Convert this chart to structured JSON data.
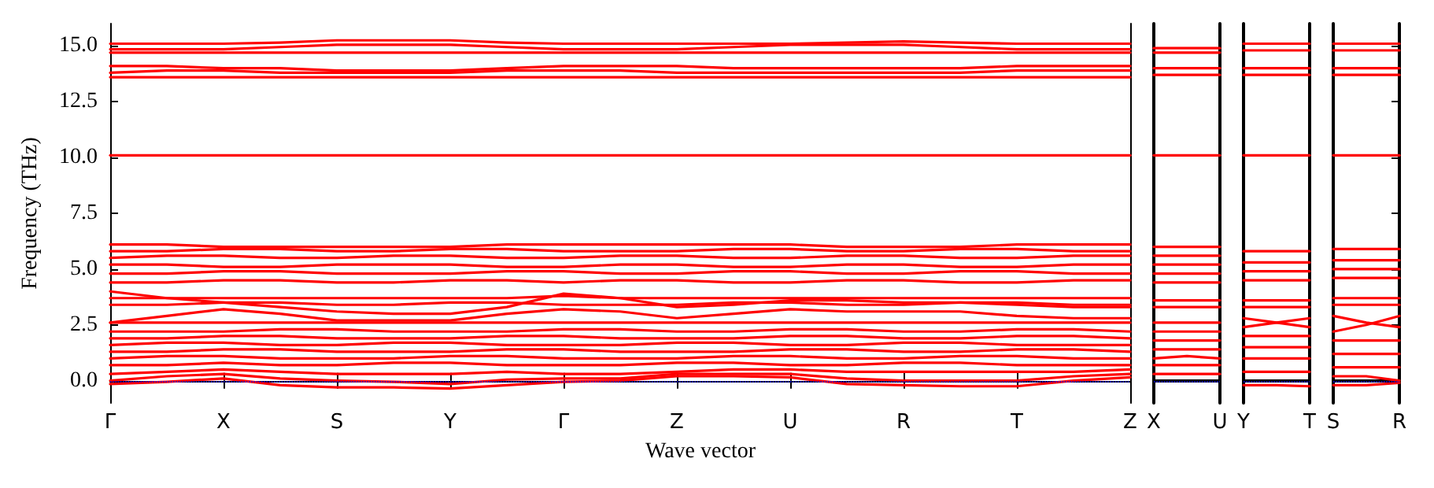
{
  "chart_data": [
    {
      "type": "line",
      "ylabel": "Frequency (THz)",
      "xlabel": "Wave vector",
      "line_style": "solid",
      "marker": "none",
      "categories": [
        "Γ",
        null,
        "X",
        null,
        "S",
        null,
        "Y",
        null,
        "Γ",
        null,
        "Z",
        null,
        "U",
        null,
        "R",
        null,
        "T",
        null,
        "Z"
      ],
      "ylim": [
        -1,
        16
      ],
      "yticks": [
        {
          "value": 0,
          "label": "0.0"
        },
        {
          "value": 2.5,
          "label": "2.5"
        },
        {
          "value": 5,
          "label": "5.0"
        },
        {
          "value": 7.5,
          "label": "7.5"
        },
        {
          "value": 10,
          "label": "10.0"
        },
        {
          "value": 12.5,
          "label": "12.5"
        },
        {
          "value": 15,
          "label": "15.0"
        }
      ],
      "ref_lines": [
        {
          "axis": "y",
          "value": 0,
          "color": "#0000ff",
          "line_style": "dotted"
        }
      ],
      "series": [
        {
          "color": "#ff0000",
          "values": [
            -0.15,
            -0.05,
            0.1,
            -0.2,
            -0.3,
            -0.3,
            -0.35,
            -0.2,
            -0.05,
            0.0,
            0.2,
            0.2,
            0.15,
            -0.15,
            -0.2,
            -0.25,
            -0.25,
            0.0,
            0.15
          ]
        },
        {
          "color": "#ff0000",
          "values": [
            0.0,
            0.2,
            0.3,
            0.1,
            0.0,
            -0.05,
            -0.15,
            0.05,
            0.1,
            0.1,
            0.3,
            0.3,
            0.3,
            0.1,
            0.0,
            0.0,
            0.0,
            0.2,
            0.3
          ]
        },
        {
          "color": "#ff0000",
          "values": [
            0.3,
            0.4,
            0.5,
            0.4,
            0.3,
            0.3,
            0.3,
            0.4,
            0.3,
            0.3,
            0.4,
            0.5,
            0.5,
            0.4,
            0.4,
            0.4,
            0.4,
            0.4,
            0.5
          ]
        },
        {
          "color": "#ff0000",
          "values": [
            0.7,
            0.7,
            0.8,
            0.7,
            0.7,
            0.8,
            0.8,
            0.7,
            0.7,
            0.7,
            0.8,
            0.8,
            0.7,
            0.7,
            0.8,
            0.8,
            0.7,
            0.7,
            0.7
          ]
        },
        {
          "color": "#ff0000",
          "values": [
            1.0,
            1.1,
            1.1,
            1.0,
            1.0,
            1.0,
            1.1,
            1.1,
            1.0,
            1.0,
            1.0,
            1.1,
            1.1,
            1.0,
            1.0,
            1.1,
            1.1,
            1.0,
            1.0
          ]
        },
        {
          "color": "#ff0000",
          "values": [
            1.3,
            1.3,
            1.4,
            1.4,
            1.3,
            1.3,
            1.3,
            1.4,
            1.4,
            1.3,
            1.3,
            1.3,
            1.4,
            1.4,
            1.3,
            1.3,
            1.4,
            1.4,
            1.3
          ]
        },
        {
          "color": "#ff0000",
          "values": [
            1.6,
            1.7,
            1.7,
            1.6,
            1.6,
            1.7,
            1.7,
            1.6,
            1.6,
            1.6,
            1.7,
            1.7,
            1.6,
            1.6,
            1.7,
            1.7,
            1.6,
            1.6,
            1.6
          ]
        },
        {
          "color": "#ff0000",
          "values": [
            1.9,
            1.9,
            2.0,
            2.0,
            1.9,
            1.9,
            1.9,
            2.0,
            2.0,
            1.9,
            1.9,
            1.9,
            2.0,
            2.0,
            1.9,
            1.9,
            2.0,
            2.0,
            1.9
          ]
        },
        {
          "color": "#ff0000",
          "values": [
            2.2,
            2.2,
            2.2,
            2.3,
            2.3,
            2.2,
            2.2,
            2.2,
            2.3,
            2.3,
            2.2,
            2.2,
            2.3,
            2.3,
            2.2,
            2.2,
            2.3,
            2.3,
            2.2
          ]
        },
        {
          "color": "#ff0000",
          "values": [
            2.6,
            2.9,
            3.2,
            3.0,
            2.7,
            2.7,
            2.7,
            3.0,
            3.2,
            3.1,
            2.8,
            3.0,
            3.2,
            3.1,
            3.1,
            3.1,
            2.9,
            2.8,
            2.8
          ]
        },
        {
          "color": "#ff0000",
          "values": [
            2.6,
            2.6,
            2.6,
            2.6,
            2.6,
            2.6,
            2.6,
            2.6,
            2.6,
            2.6,
            2.6,
            2.6,
            2.6,
            2.6,
            2.6,
            2.6,
            2.6,
            2.6,
            2.6
          ]
        },
        {
          "color": "#ff0000",
          "values": [
            3.4,
            3.4,
            3.5,
            3.5,
            3.4,
            3.4,
            3.5,
            3.5,
            3.4,
            3.4,
            3.4,
            3.5,
            3.5,
            3.4,
            3.4,
            3.5,
            3.5,
            3.4,
            3.4
          ]
        },
        {
          "color": "#ff0000",
          "values": [
            3.7,
            3.7,
            3.7,
            3.7,
            3.7,
            3.7,
            3.7,
            3.7,
            3.8,
            3.7,
            3.7,
            3.7,
            3.7,
            3.7,
            3.7,
            3.7,
            3.7,
            3.7,
            3.7
          ]
        },
        {
          "color": "#ff0000",
          "values": [
            4.0,
            3.7,
            3.5,
            3.3,
            3.1,
            3.0,
            3.0,
            3.3,
            3.9,
            3.7,
            3.3,
            3.4,
            3.6,
            3.6,
            3.5,
            3.5,
            3.4,
            3.3,
            3.3
          ]
        },
        {
          "color": "#ff0000",
          "values": [
            4.4,
            4.4,
            4.5,
            4.5,
            4.4,
            4.4,
            4.5,
            4.5,
            4.4,
            4.5,
            4.5,
            4.4,
            4.4,
            4.5,
            4.5,
            4.4,
            4.4,
            4.5,
            4.5
          ]
        },
        {
          "color": "#ff0000",
          "values": [
            4.8,
            4.8,
            4.9,
            4.9,
            4.8,
            4.8,
            4.8,
            4.9,
            4.9,
            4.8,
            4.8,
            4.9,
            4.9,
            4.8,
            4.8,
            4.9,
            4.9,
            4.8,
            4.8
          ]
        },
        {
          "color": "#ff0000",
          "values": [
            5.2,
            5.2,
            5.1,
            5.1,
            5.2,
            5.2,
            5.2,
            5.1,
            5.1,
            5.2,
            5.2,
            5.1,
            5.1,
            5.2,
            5.2,
            5.1,
            5.1,
            5.2,
            5.2
          ]
        },
        {
          "color": "#ff0000",
          "values": [
            5.5,
            5.6,
            5.6,
            5.5,
            5.5,
            5.6,
            5.6,
            5.5,
            5.5,
            5.6,
            5.6,
            5.5,
            5.5,
            5.6,
            5.6,
            5.5,
            5.5,
            5.6,
            5.6
          ]
        },
        {
          "color": "#ff0000",
          "values": [
            5.8,
            5.8,
            5.9,
            5.9,
            5.8,
            5.8,
            5.9,
            5.9,
            5.8,
            5.8,
            5.8,
            5.9,
            5.9,
            5.8,
            5.8,
            5.9,
            5.9,
            5.8,
            5.8
          ]
        },
        {
          "color": "#ff0000",
          "values": [
            6.1,
            6.1,
            6.0,
            6.0,
            6.0,
            6.0,
            6.0,
            6.1,
            6.1,
            6.1,
            6.1,
            6.1,
            6.1,
            6.0,
            6.0,
            6.0,
            6.1,
            6.1,
            6.1
          ]
        },
        {
          "color": "#ff0000",
          "values": [
            10.1,
            10.1,
            10.1,
            10.1,
            10.1,
            10.1,
            10.1,
            10.1,
            10.1,
            10.1,
            10.1,
            10.1,
            10.1,
            10.1,
            10.1,
            10.1,
            10.1,
            10.1,
            10.1
          ]
        },
        {
          "color": "#ff0000",
          "values": [
            13.6,
            13.6,
            13.6,
            13.6,
            13.6,
            13.6,
            13.6,
            13.6,
            13.6,
            13.6,
            13.6,
            13.6,
            13.6,
            13.6,
            13.6,
            13.6,
            13.6,
            13.6,
            13.6
          ]
        },
        {
          "color": "#ff0000",
          "values": [
            13.8,
            13.9,
            13.9,
            13.8,
            13.8,
            13.8,
            13.8,
            13.9,
            13.9,
            13.9,
            13.8,
            13.8,
            13.8,
            13.8,
            13.8,
            13.8,
            13.9,
            13.9,
            13.9
          ]
        },
        {
          "color": "#ff0000",
          "values": [
            14.1,
            14.1,
            14.0,
            14.0,
            13.9,
            13.9,
            13.9,
            14.0,
            14.1,
            14.1,
            14.1,
            14.0,
            14.0,
            14.0,
            14.0,
            14.0,
            14.1,
            14.1,
            14.1
          ]
        },
        {
          "color": "#ff0000",
          "values": [
            14.7,
            14.7,
            14.7,
            14.7,
            14.7,
            14.7,
            14.7,
            14.7,
            14.7,
            14.7,
            14.7,
            14.7,
            14.7,
            14.7,
            14.7,
            14.7,
            14.7,
            14.7,
            14.7
          ]
        },
        {
          "color": "#ff0000",
          "values": [
            14.85,
            14.85,
            14.85,
            14.95,
            15.05,
            15.05,
            15.05,
            14.95,
            14.85,
            14.85,
            14.85,
            14.95,
            15.05,
            15.05,
            15.05,
            14.95,
            14.85,
            14.85,
            14.85
          ]
        },
        {
          "color": "#ff0000",
          "values": [
            15.1,
            15.1,
            15.1,
            15.15,
            15.25,
            15.25,
            15.25,
            15.15,
            15.1,
            15.1,
            15.1,
            15.1,
            15.1,
            15.15,
            15.2,
            15.15,
            15.1,
            15.1,
            15.1
          ]
        }
      ]
    },
    {
      "type": "line",
      "line_style": "solid",
      "marker": "none",
      "tick_labels": "x",
      "categories": [
        "X",
        null,
        "U"
      ],
      "ylim": [
        -1,
        16
      ],
      "yticks": [
        0,
        2.5,
        5,
        7.5,
        10,
        12.5,
        15
      ],
      "ref_lines": [
        {
          "axis": "y",
          "value": 0,
          "color": "#0000ff",
          "line_style": "dotted"
        }
      ],
      "series": [
        {
          "color": "#ff0000",
          "values": [
            0.3,
            0.3,
            0.3
          ]
        },
        {
          "color": "#ff0000",
          "values": [
            0.7,
            0.7,
            0.7
          ]
        },
        {
          "color": "#ff0000",
          "values": [
            1.0,
            1.1,
            1.0
          ]
        },
        {
          "color": "#ff0000",
          "values": [
            1.4,
            1.4,
            1.4
          ]
        },
        {
          "color": "#ff0000",
          "values": [
            1.8,
            1.8,
            1.8
          ]
        },
        {
          "color": "#ff0000",
          "values": [
            2.2,
            2.2,
            2.2
          ]
        },
        {
          "color": "#ff0000",
          "values": [
            2.6,
            2.6,
            2.6
          ]
        },
        {
          "color": "#ff0000",
          "values": [
            3.3,
            3.3,
            3.3
          ]
        },
        {
          "color": "#ff0000",
          "values": [
            3.6,
            3.6,
            3.6
          ]
        },
        {
          "color": "#ff0000",
          "values": [
            4.4,
            4.4,
            4.4
          ]
        },
        {
          "color": "#ff0000",
          "values": [
            4.8,
            4.8,
            4.8
          ]
        },
        {
          "color": "#ff0000",
          "values": [
            5.2,
            5.2,
            5.2
          ]
        },
        {
          "color": "#ff0000",
          "values": [
            5.6,
            5.6,
            5.6
          ]
        },
        {
          "color": "#ff0000",
          "values": [
            6.0,
            6.0,
            6.0
          ]
        },
        {
          "color": "#ff0000",
          "values": [
            10.1,
            10.1,
            10.1
          ]
        },
        {
          "color": "#ff0000",
          "values": [
            13.7,
            13.7,
            13.7
          ]
        },
        {
          "color": "#ff0000",
          "values": [
            14.0,
            14.0,
            14.0
          ]
        },
        {
          "color": "#ff0000",
          "values": [
            14.7,
            14.7,
            14.7
          ]
        },
        {
          "color": "#ff0000",
          "values": [
            14.9,
            14.9,
            14.9
          ]
        }
      ]
    },
    {
      "type": "line",
      "line_style": "solid",
      "marker": "none",
      "tick_labels": "x",
      "categories": [
        "Y",
        null,
        "T"
      ],
      "ylim": [
        -1,
        16
      ],
      "yticks": [
        0,
        2.5,
        5,
        7.5,
        10,
        12.5,
        15
      ],
      "ref_lines": [
        {
          "axis": "y",
          "value": 0,
          "color": "#0000ff",
          "line_style": "dotted"
        }
      ],
      "series": [
        {
          "color": "#ff0000",
          "values": [
            -0.2,
            -0.2,
            -0.25
          ]
        },
        {
          "color": "#ff0000",
          "values": [
            0.4,
            0.4,
            0.4
          ]
        },
        {
          "color": "#ff0000",
          "values": [
            1.0,
            1.0,
            1.0
          ]
        },
        {
          "color": "#ff0000",
          "values": [
            1.5,
            1.5,
            1.5
          ]
        },
        {
          "color": "#ff0000",
          "values": [
            2.0,
            2.0,
            2.0
          ]
        },
        {
          "color": "#ff0000",
          "values": [
            2.4,
            2.6,
            2.8
          ]
        },
        {
          "color": "#ff0000",
          "values": [
            2.8,
            2.6,
            2.4
          ]
        },
        {
          "color": "#ff0000",
          "values": [
            3.3,
            3.3,
            3.3
          ]
        },
        {
          "color": "#ff0000",
          "values": [
            3.6,
            3.6,
            3.6
          ]
        },
        {
          "color": "#ff0000",
          "values": [
            4.5,
            4.5,
            4.5
          ]
        },
        {
          "color": "#ff0000",
          "values": [
            4.9,
            4.9,
            4.9
          ]
        },
        {
          "color": "#ff0000",
          "values": [
            5.3,
            5.3,
            5.3
          ]
        },
        {
          "color": "#ff0000",
          "values": [
            5.8,
            5.8,
            5.8
          ]
        },
        {
          "color": "#ff0000",
          "values": [
            10.1,
            10.1,
            10.1
          ]
        },
        {
          "color": "#ff0000",
          "values": [
            13.7,
            13.7,
            13.7
          ]
        },
        {
          "color": "#ff0000",
          "values": [
            14.0,
            14.0,
            14.0
          ]
        },
        {
          "color": "#ff0000",
          "values": [
            14.8,
            14.8,
            14.8
          ]
        },
        {
          "color": "#ff0000",
          "values": [
            15.1,
            15.1,
            15.1
          ]
        }
      ]
    },
    {
      "type": "line",
      "line_style": "solid",
      "marker": "none",
      "tick_labels": "x",
      "categories": [
        "S",
        null,
        "R"
      ],
      "ylim": [
        -1,
        16
      ],
      "yticks": [
        0,
        2.5,
        5,
        7.5,
        10,
        12.5,
        15
      ],
      "ref_lines": [
        {
          "axis": "y",
          "value": 0,
          "color": "#0000ff",
          "line_style": "dotted"
        }
      ],
      "series": [
        {
          "color": "#ff0000",
          "values": [
            -0.2,
            -0.2,
            -0.1
          ]
        },
        {
          "color": "#ff0000",
          "values": [
            0.2,
            0.2,
            0.0
          ]
        },
        {
          "color": "#ff0000",
          "values": [
            0.6,
            0.6,
            0.6
          ]
        },
        {
          "color": "#ff0000",
          "values": [
            1.2,
            1.2,
            1.2
          ]
        },
        {
          "color": "#ff0000",
          "values": [
            1.8,
            1.8,
            1.8
          ]
        },
        {
          "color": "#ff0000",
          "values": [
            2.2,
            2.5,
            2.9
          ]
        },
        {
          "color": "#ff0000",
          "values": [
            2.9,
            2.6,
            2.4
          ]
        },
        {
          "color": "#ff0000",
          "values": [
            3.4,
            3.4,
            3.4
          ]
        },
        {
          "color": "#ff0000",
          "values": [
            3.7,
            3.7,
            3.7
          ]
        },
        {
          "color": "#ff0000",
          "values": [
            4.6,
            4.6,
            4.6
          ]
        },
        {
          "color": "#ff0000",
          "values": [
            5.0,
            5.0,
            5.0
          ]
        },
        {
          "color": "#ff0000",
          "values": [
            5.4,
            5.4,
            5.4
          ]
        },
        {
          "color": "#ff0000",
          "values": [
            5.9,
            5.9,
            5.9
          ]
        },
        {
          "color": "#ff0000",
          "values": [
            10.1,
            10.1,
            10.1
          ]
        },
        {
          "color": "#ff0000",
          "values": [
            13.7,
            13.7,
            13.7
          ]
        },
        {
          "color": "#ff0000",
          "values": [
            14.0,
            14.0,
            14.0
          ]
        },
        {
          "color": "#ff0000",
          "values": [
            14.8,
            14.8,
            14.8
          ]
        },
        {
          "color": "#ff0000",
          "values": [
            15.1,
            15.1,
            15.1
          ]
        }
      ]
    }
  ]
}
